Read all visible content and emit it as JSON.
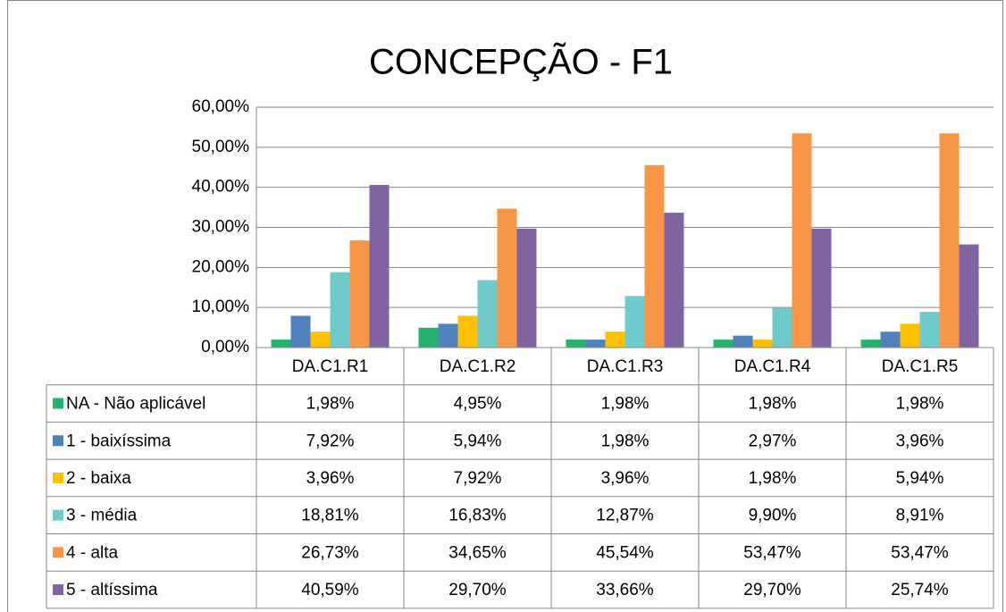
{
  "chart_data": {
    "type": "bar",
    "title": "CONCEPÇÃO - F1",
    "categories": [
      "DA.C1.R1",
      "DA.C1.R2",
      "DA.C1.R3",
      "DA.C1.R4",
      "DA.C1.R5"
    ],
    "series": [
      {
        "name": "NA - Não aplicável",
        "color": "#21b36b",
        "values": [
          1.98,
          4.95,
          1.98,
          1.98,
          1.98
        ],
        "value_labels": [
          "1,98%",
          "4,95%",
          "1,98%",
          "1,98%",
          "1,98%"
        ]
      },
      {
        "name": "1 - baixíssima",
        "color": "#4f81bd",
        "values": [
          7.92,
          5.94,
          1.98,
          2.97,
          3.96
        ],
        "value_labels": [
          "7,92%",
          "5,94%",
          "1,98%",
          "2,97%",
          "3,96%"
        ]
      },
      {
        "name": "2 - baixa",
        "color": "#ffc000",
        "values": [
          3.96,
          7.92,
          3.96,
          1.98,
          5.94
        ],
        "value_labels": [
          "3,96%",
          "7,92%",
          "3,96%",
          "1,98%",
          "5,94%"
        ]
      },
      {
        "name": "3 - média",
        "color": "#6fcacb",
        "values": [
          18.81,
          16.83,
          12.87,
          9.9,
          8.91
        ],
        "value_labels": [
          "18,81%",
          "16,83%",
          "12,87%",
          "9,90%",
          "8,91%"
        ]
      },
      {
        "name": "4 - alta",
        "color": "#f79646",
        "values": [
          26.73,
          34.65,
          45.54,
          53.47,
          53.47
        ],
        "value_labels": [
          "26,73%",
          "34,65%",
          "45,54%",
          "53,47%",
          "53,47%"
        ]
      },
      {
        "name": "5 - altíssima",
        "color": "#8064a2",
        "values": [
          40.59,
          29.7,
          33.66,
          29.7,
          25.74
        ],
        "value_labels": [
          "40,59%",
          "29,70%",
          "33,66%",
          "29,70%",
          "25,74%"
        ]
      }
    ],
    "ylim": [
      0,
      60
    ],
    "yticks": [
      {
        "value": 0,
        "label": "0,00%"
      },
      {
        "value": 10,
        "label": "10,00%"
      },
      {
        "value": 20,
        "label": "20,00%"
      },
      {
        "value": 30,
        "label": "30,00%"
      },
      {
        "value": 40,
        "label": "40,00%"
      },
      {
        "value": 50,
        "label": "50,00%"
      },
      {
        "value": 60,
        "label": "60,00%"
      }
    ],
    "grid": true
  }
}
